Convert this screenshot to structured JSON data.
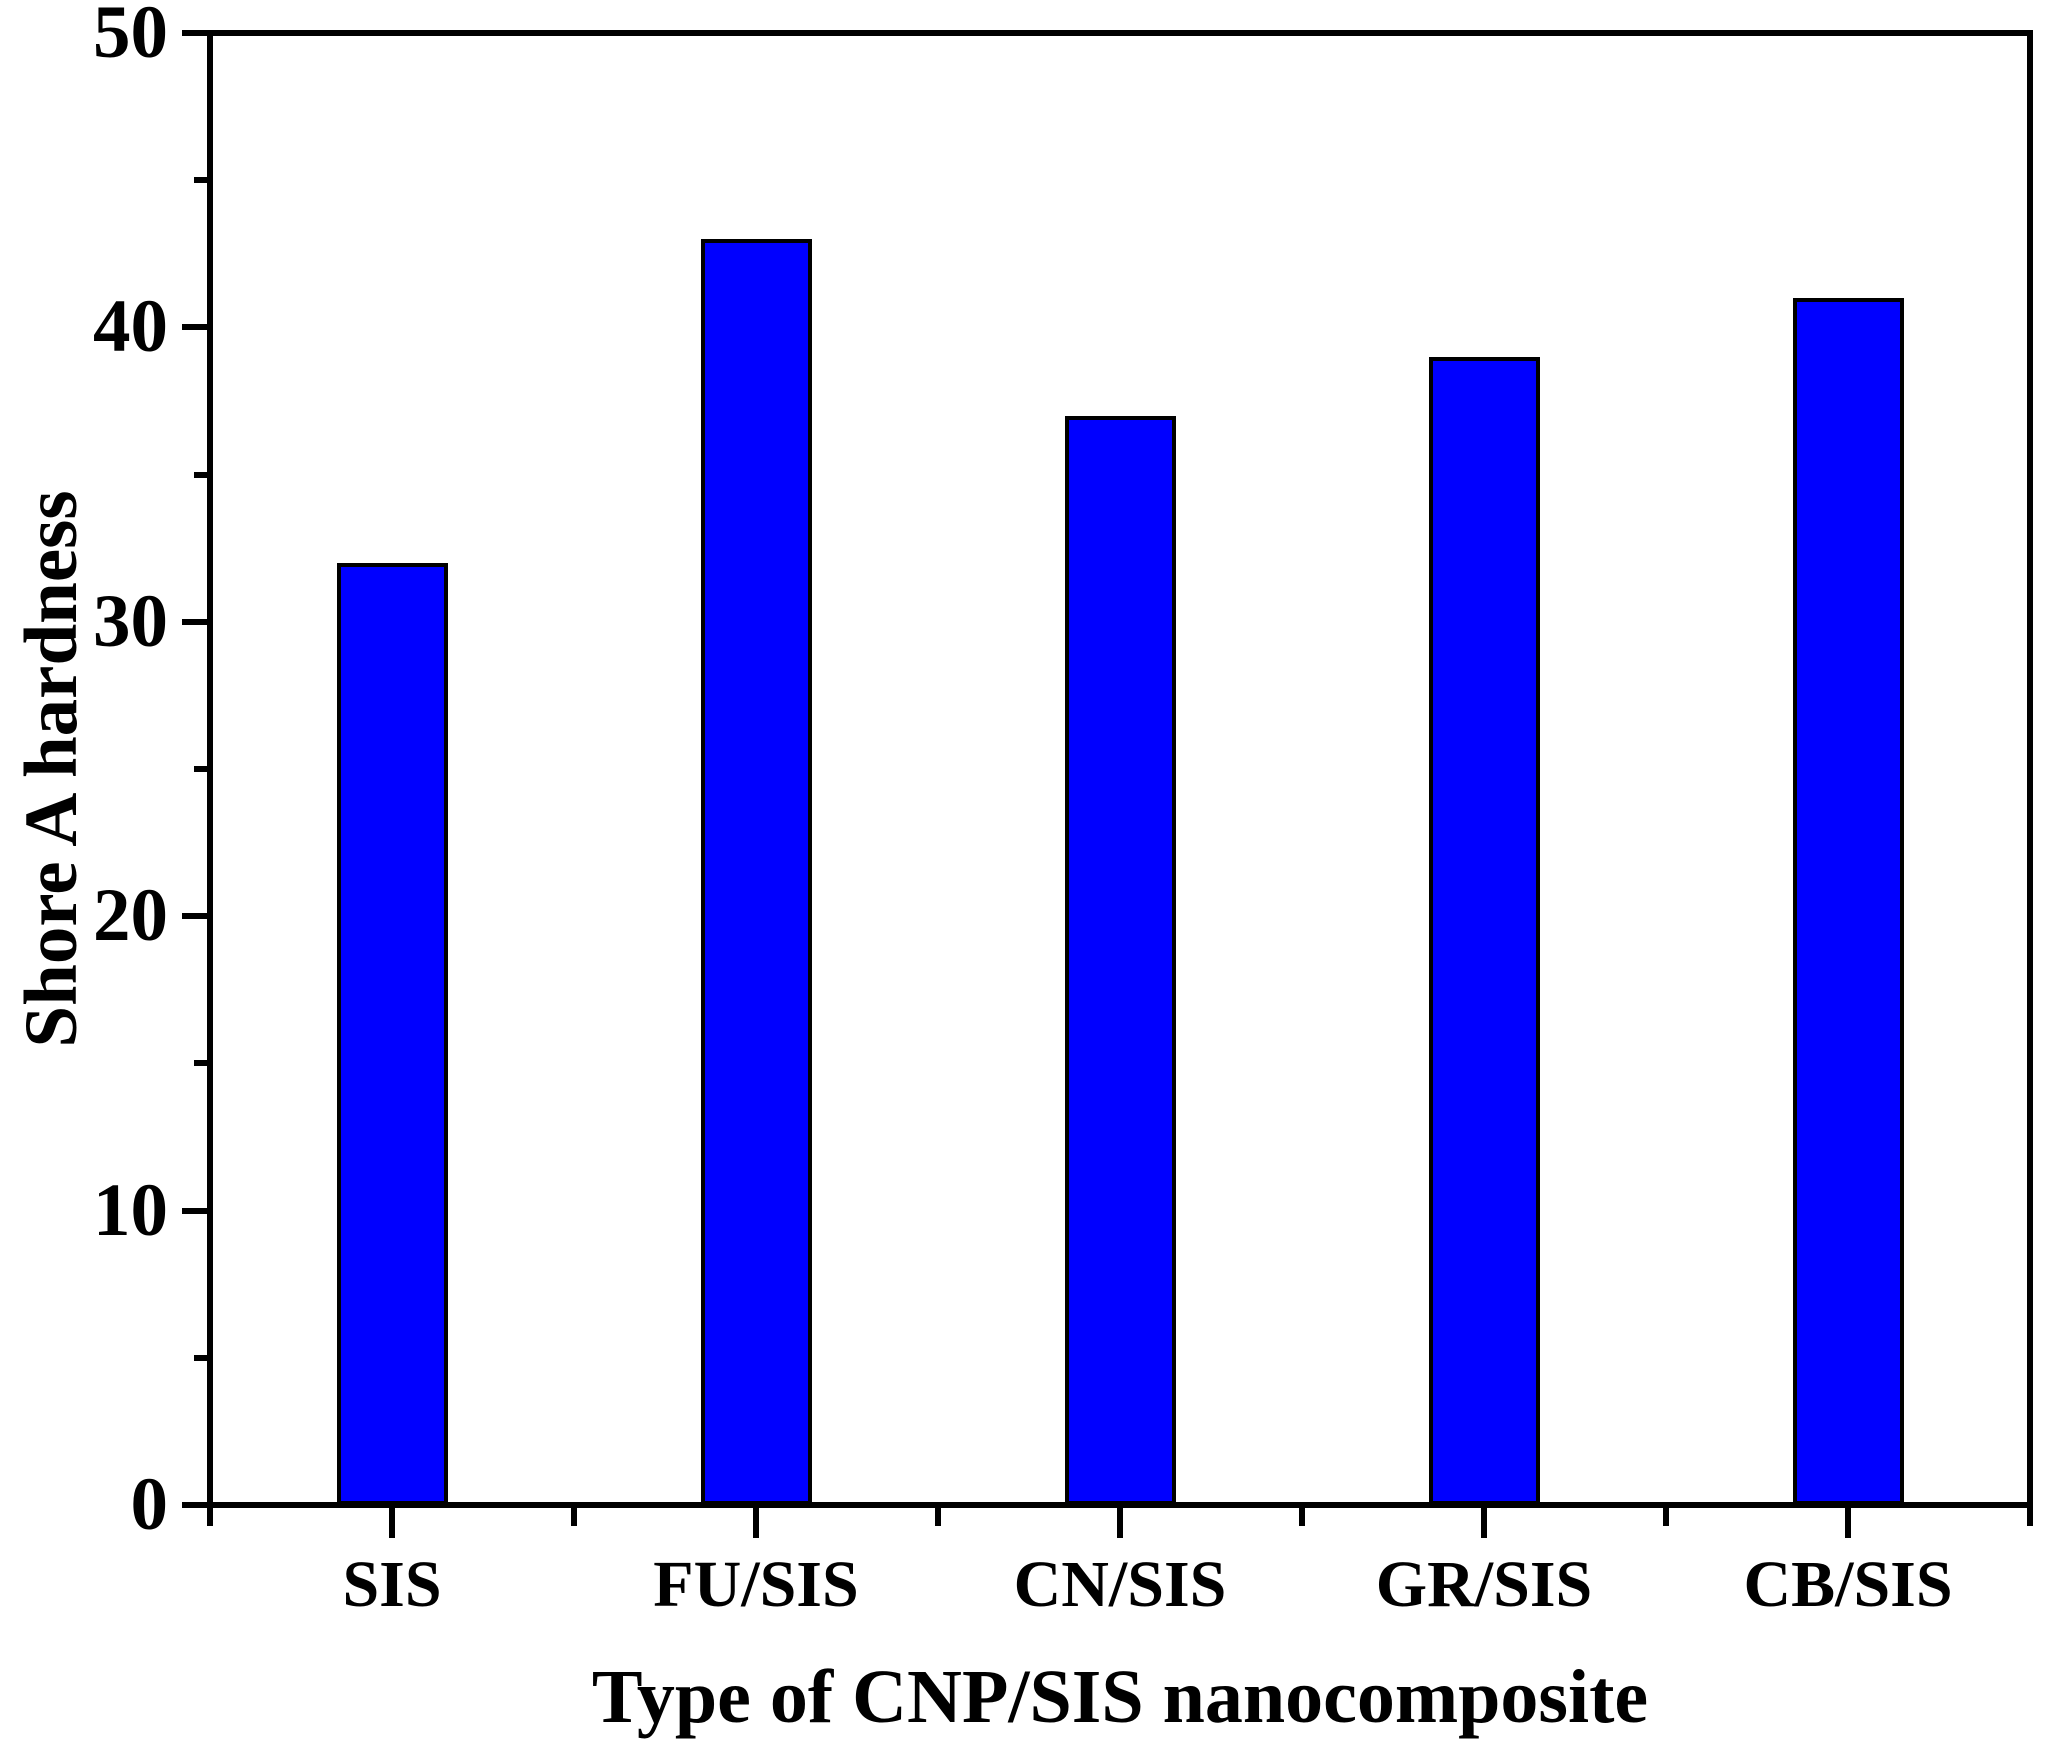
{
  "chart_data": {
    "type": "bar",
    "title": "",
    "categories": [
      "SIS",
      "FU/SIS",
      "CN/SIS",
      "GR/SIS",
      "CB/SIS"
    ],
    "values": [
      32,
      43,
      37,
      39,
      41
    ],
    "xlabel": "Type of CNP/SIS nanocomposite",
    "ylabel": "Shore A hardness",
    "ylim": [
      0,
      50
    ],
    "y_major_ticks": [
      0,
      10,
      20,
      30,
      40,
      50
    ],
    "y_minor_ticks": [
      5,
      15,
      25,
      35,
      45
    ],
    "legend": false,
    "grid": false,
    "bar_color": "#0000ff",
    "bar_border_color": "#000000",
    "axis_color": "#000000",
    "text_color": "#000000",
    "background_color": "#ffffff"
  }
}
